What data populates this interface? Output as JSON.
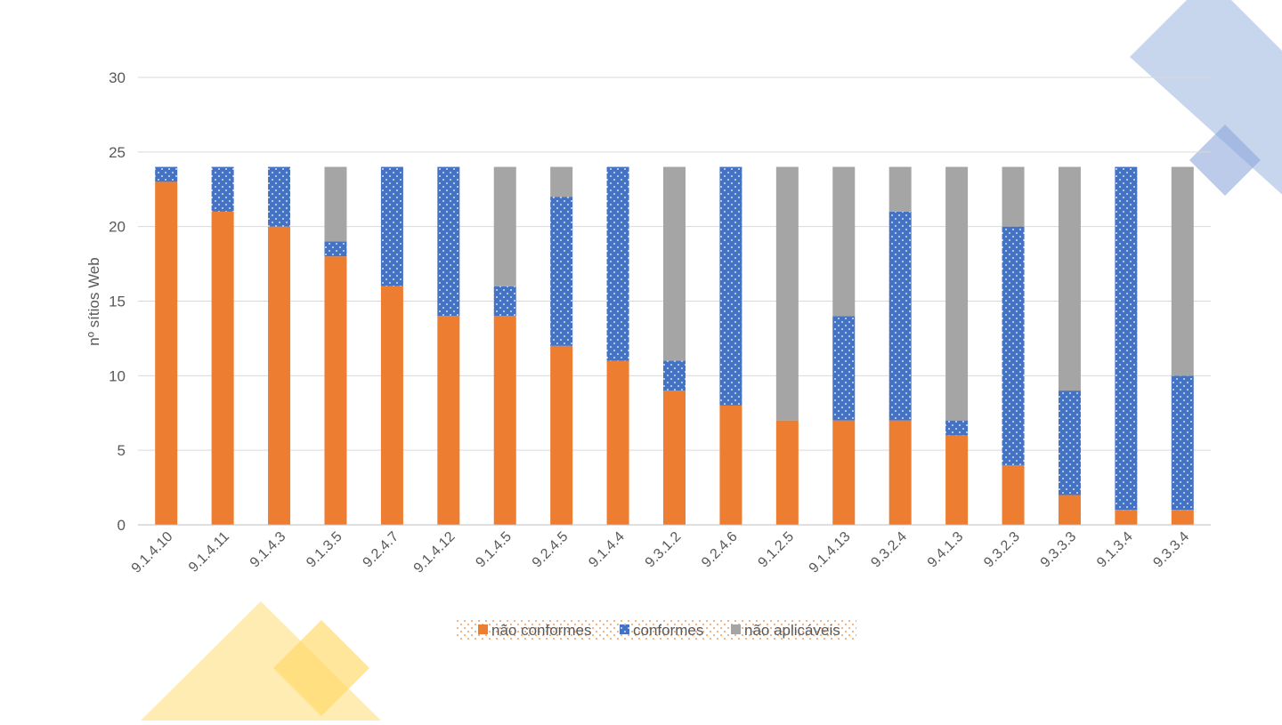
{
  "colors": {
    "nao_conformes": "#ED7D31",
    "conformes": "#4472C4",
    "nao_aplicaveis": "#A5A5A5",
    "grid": "#D9D9D9",
    "text": "#595959",
    "deco_blue": "#B4C7E7",
    "deco_yellow": "#FFE699"
  },
  "chart_data": {
    "type": "bar",
    "stacked": true,
    "title": "",
    "xlabel": "",
    "ylabel": "nº sítios Web",
    "ylim": [
      0,
      30
    ],
    "yticks": [
      0,
      5,
      10,
      15,
      20,
      25,
      30
    ],
    "grid": true,
    "legend_position": "bottom",
    "categories": [
      "9.1.4.10",
      "9.1.4.11",
      "9.1.4.3",
      "9.1.3.5",
      "9.2.4.7",
      "9.1.4.12",
      "9.1.4.5",
      "9.2.4.5",
      "9.1.4.4",
      "9.3.1.2",
      "9.2.4.6",
      "9.1.2.5",
      "9.1.4.13",
      "9.3.2.4",
      "9.4.1.3",
      "9.3.2.3",
      "9.3.3.3",
      "9.1.3.4",
      "9.3.3.4"
    ],
    "series": [
      {
        "name": "não conformes",
        "color": "#ED7D31",
        "pattern": "solid",
        "values": [
          23,
          21,
          20,
          18,
          16,
          14,
          14,
          12,
          11,
          9,
          8,
          7,
          7,
          7,
          6,
          4,
          2,
          1,
          1
        ]
      },
      {
        "name": "conformes",
        "color": "#4472C4",
        "pattern": "dots",
        "values": [
          1,
          3,
          4,
          1,
          8,
          10,
          2,
          10,
          13,
          2,
          16,
          0,
          7,
          14,
          1,
          16,
          7,
          23,
          9
        ]
      },
      {
        "name": "não aplicáveis",
        "color": "#A5A5A5",
        "pattern": "solid",
        "values": [
          0,
          0,
          0,
          5,
          0,
          0,
          8,
          2,
          0,
          13,
          0,
          17,
          10,
          3,
          17,
          4,
          15,
          0,
          14
        ]
      }
    ]
  }
}
